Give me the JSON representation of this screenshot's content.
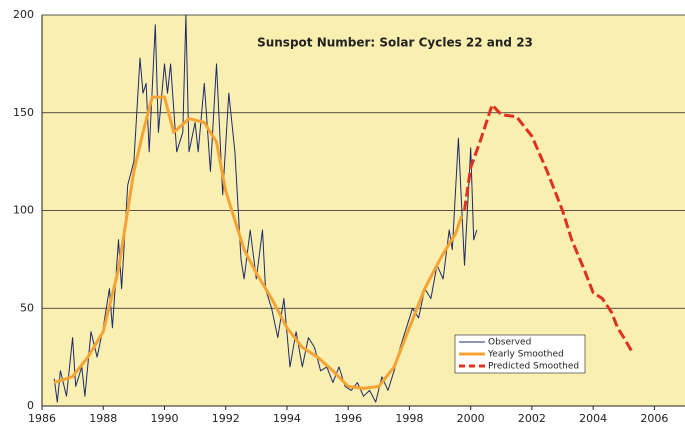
{
  "chart_data": {
    "type": "line",
    "title": "Sunspot Number: Solar Cycles 22 and 23",
    "xlim": [
      1986,
      2007
    ],
    "xticks": [
      1986,
      1988,
      1990,
      1992,
      1994,
      1996,
      1998,
      2000,
      2002,
      2004,
      2006
    ],
    "ylim": [
      0,
      200
    ],
    "yticks": [
      0,
      50,
      100,
      150,
      200
    ],
    "grid": true,
    "legend": "lower-right",
    "background": "#f9efb0",
    "series": [
      {
        "name": "Observed",
        "color": "#1c2a6e",
        "width": 1,
        "dashed": false,
        "x": [
          1986.4,
          1986.5,
          1986.6,
          1986.8,
          1987.0,
          1987.1,
          1987.3,
          1987.4,
          1987.6,
          1987.8,
          1988.0,
          1988.2,
          1988.3,
          1988.5,
          1988.6,
          1988.8,
          1989.0,
          1989.2,
          1989.3,
          1989.4,
          1989.5,
          1989.7,
          1989.8,
          1990.0,
          1990.1,
          1990.2,
          1990.4,
          1990.6,
          1990.7,
          1990.8,
          1991.0,
          1991.1,
          1991.3,
          1991.5,
          1991.7,
          1991.9,
          1992.1,
          1992.3,
          1992.5,
          1992.6,
          1992.8,
          1993.0,
          1993.2,
          1993.3,
          1993.5,
          1993.7,
          1993.9,
          1994.1,
          1994.3,
          1994.5,
          1994.7,
          1994.9,
          1995.1,
          1995.3,
          1995.5,
          1995.7,
          1995.9,
          1996.1,
          1996.3,
          1996.5,
          1996.7,
          1996.9,
          1997.1,
          1997.3,
          1997.5,
          1997.7,
          1997.9,
          1998.1,
          1998.3,
          1998.5,
          1998.7,
          1998.9,
          1999.1,
          1999.3,
          1999.4,
          1999.6,
          1999.8,
          2000.0,
          2000.1,
          2000.2
        ],
        "values": [
          14,
          2,
          18,
          5,
          35,
          10,
          20,
          5,
          38,
          25,
          40,
          60,
          40,
          85,
          60,
          113,
          125,
          178,
          160,
          165,
          130,
          195,
          140,
          175,
          160,
          175,
          130,
          140,
          200,
          130,
          145,
          130,
          165,
          120,
          175,
          108,
          160,
          130,
          75,
          65,
          90,
          65,
          90,
          60,
          50,
          35,
          55,
          20,
          38,
          20,
          35,
          30,
          18,
          20,
          12,
          20,
          10,
          8,
          12,
          5,
          8,
          2,
          15,
          8,
          18,
          30,
          40,
          50,
          45,
          60,
          55,
          72,
          65,
          90,
          80,
          137,
          72,
          132,
          85,
          90
        ]
      },
      {
        "name": "Yearly Smoothed",
        "color": "#f5a335",
        "width": 3,
        "dashed": false,
        "x": [
          1986.4,
          1987.0,
          1987.5,
          1988.0,
          1988.5,
          1989.0,
          1989.3,
          1989.6,
          1990.0,
          1990.3,
          1990.8,
          1991.3,
          1991.7,
          1992.0,
          1992.3,
          1992.6,
          1993.0,
          1993.5,
          1994.0,
          1994.5,
          1995.0,
          1995.5,
          1996.0,
          1996.5,
          1997.0,
          1997.5,
          1998.0,
          1998.5,
          1999.0,
          1999.3,
          1999.5,
          1999.7
        ],
        "values": [
          12,
          15,
          25,
          38,
          70,
          120,
          140,
          158,
          158,
          140,
          147,
          145,
          135,
          110,
          95,
          80,
          68,
          55,
          40,
          30,
          25,
          18,
          10,
          9,
          10,
          20,
          40,
          60,
          75,
          83,
          88,
          97
        ]
      },
      {
        "name": "Predicted Smoothed",
        "color": "#e0301e",
        "width": 3,
        "dashed": true,
        "x": [
          1999.8,
          2000.0,
          2000.3,
          2000.7,
          2001.0,
          2001.5,
          2002.0,
          2002.5,
          2003.0,
          2003.3,
          2003.7,
          2004.0,
          2004.3,
          2004.6,
          2004.8,
          2005.0,
          2005.3
        ],
        "values": [
          100,
          122,
          135,
          154,
          149,
          148,
          138,
          120,
          100,
          85,
          70,
          58,
          55,
          48,
          40,
          35,
          27
        ]
      }
    ]
  }
}
